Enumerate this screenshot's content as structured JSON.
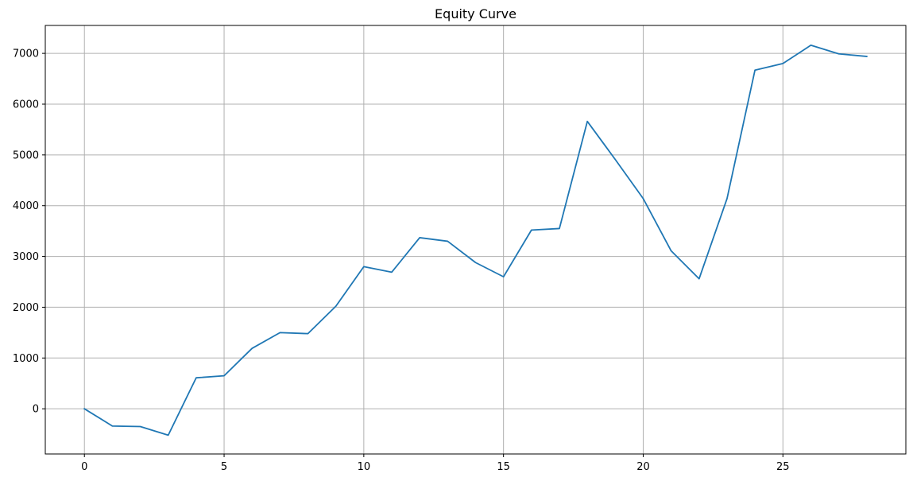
{
  "chart_data": {
    "type": "line",
    "title": "Equity Curve",
    "xlabel": "",
    "ylabel": "",
    "xlim": [
      -1.4,
      29.4
    ],
    "ylim": [
      -890,
      7550
    ],
    "x_ticks": [
      0,
      5,
      10,
      15,
      20,
      25
    ],
    "y_ticks": [
      0,
      1000,
      2000,
      3000,
      4000,
      5000,
      6000,
      7000
    ],
    "grid": true,
    "legend": "none",
    "series": [
      {
        "color": "#1f77b4",
        "x": [
          0,
          1,
          2,
          3,
          4,
          5,
          6,
          7,
          8,
          9,
          10,
          11,
          12,
          13,
          14,
          15,
          16,
          17,
          18,
          19,
          20,
          21,
          22,
          23,
          24,
          25,
          26,
          27,
          28
        ],
        "y": [
          0,
          -340,
          -350,
          -520,
          610,
          650,
          1190,
          1500,
          1480,
          2020,
          2800,
          2690,
          3370,
          3300,
          2880,
          2600,
          3520,
          3550,
          5660,
          4910,
          4140,
          3110,
          2560,
          4140,
          6670,
          6800,
          7160,
          6990,
          6940
        ]
      }
    ]
  }
}
